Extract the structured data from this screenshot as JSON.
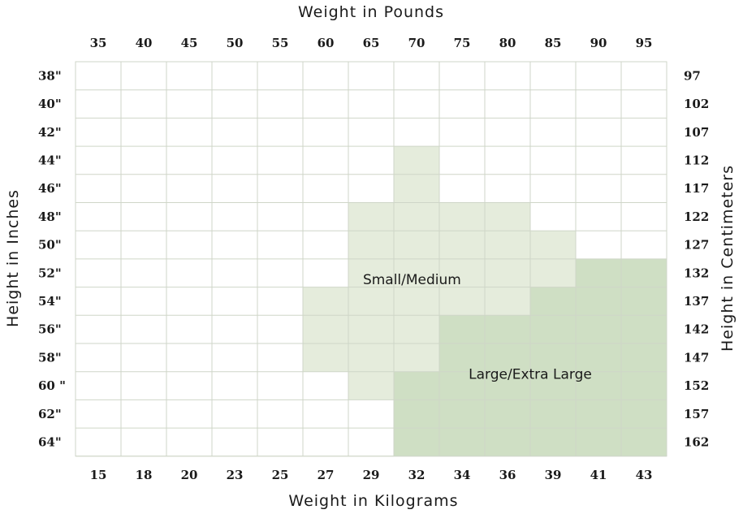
{
  "chart_data": {
    "type": "heatmap",
    "top_axis_title": "Weight in Pounds",
    "bottom_axis_title": "Weight in Kilograms",
    "left_axis_title": "Height in Inches",
    "right_axis_title": "Height in Centimeters",
    "x_pounds": [
      "35",
      "40",
      "45",
      "50",
      "55",
      "60",
      "65",
      "70",
      "75",
      "80",
      "85",
      "90",
      "95"
    ],
    "x_kilograms": [
      "15",
      "18",
      "20",
      "23",
      "25",
      "27",
      "29",
      "32",
      "34",
      "36",
      "39",
      "41",
      "43"
    ],
    "y_inches": [
      "38\"",
      "40\"",
      "42\"",
      "44\"",
      "46\"",
      "48\"",
      "50\"",
      "52\"",
      "54\"",
      "56\"",
      "58\"",
      "60 \"",
      "62\"",
      "64\""
    ],
    "y_centimeters": [
      "97",
      "102",
      "107",
      "112",
      "117",
      "122",
      "127",
      "132",
      "137",
      "142",
      "147",
      "152",
      "157",
      "162"
    ],
    "categories": [
      {
        "name": "Small/Medium",
        "code": 1,
        "color": "#e5ecdc"
      },
      {
        "name": "Large/Extra Large",
        "code": 2,
        "color": "#cfdfc4"
      }
    ],
    "grid": [
      [
        0,
        0,
        0,
        0,
        0,
        0,
        0,
        0,
        0,
        0,
        0,
        0,
        0
      ],
      [
        0,
        0,
        0,
        0,
        0,
        0,
        0,
        0,
        0,
        0,
        0,
        0,
        0
      ],
      [
        0,
        0,
        0,
        0,
        0,
        0,
        0,
        0,
        0,
        0,
        0,
        0,
        0
      ],
      [
        0,
        0,
        0,
        0,
        0,
        0,
        0,
        1,
        0,
        0,
        0,
        0,
        0
      ],
      [
        0,
        0,
        0,
        0,
        0,
        0,
        0,
        1,
        0,
        0,
        0,
        0,
        0
      ],
      [
        0,
        0,
        0,
        0,
        0,
        0,
        1,
        1,
        1,
        1,
        0,
        0,
        0
      ],
      [
        0,
        0,
        0,
        0,
        0,
        0,
        1,
        1,
        1,
        1,
        1,
        0,
        0
      ],
      [
        0,
        0,
        0,
        0,
        0,
        0,
        1,
        1,
        1,
        1,
        1,
        2,
        2
      ],
      [
        0,
        0,
        0,
        0,
        0,
        1,
        1,
        1,
        1,
        1,
        2,
        2,
        2
      ],
      [
        0,
        0,
        0,
        0,
        0,
        1,
        1,
        1,
        2,
        2,
        2,
        2,
        2
      ],
      [
        0,
        0,
        0,
        0,
        0,
        1,
        1,
        1,
        2,
        2,
        2,
        2,
        2
      ],
      [
        0,
        0,
        0,
        0,
        0,
        0,
        1,
        2,
        2,
        2,
        2,
        2,
        2
      ],
      [
        0,
        0,
        0,
        0,
        0,
        0,
        0,
        2,
        2,
        2,
        2,
        2,
        2
      ],
      [
        0,
        0,
        0,
        0,
        0,
        0,
        0,
        2,
        2,
        2,
        2,
        2,
        2
      ]
    ],
    "empty_color": "#ffffff",
    "grid_lines": true
  }
}
